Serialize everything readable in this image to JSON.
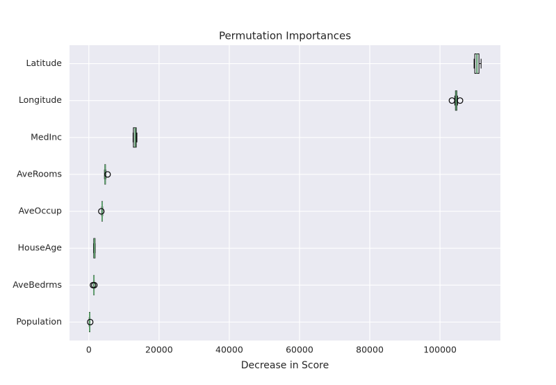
{
  "chart_data": {
    "type": "box",
    "title": "Permutation Importances",
    "x_label": "Decrease in Score",
    "categories": [
      "Latitude",
      "Longitude",
      "MedInc",
      "AveRooms",
      "AveOccup",
      "HouseAge",
      "AveBedrms",
      "Population"
    ],
    "boxes": [
      {
        "whislo": 109700,
        "q1": 109900,
        "med": 110500,
        "q3": 111100,
        "whishi": 111700,
        "fliers": []
      },
      {
        "whislo": 104200,
        "q1": 104400,
        "med": 104600,
        "q3": 104800,
        "whishi": 105000,
        "fliers": [
          103400,
          105700
        ]
      },
      {
        "whislo": 12600,
        "q1": 12700,
        "med": 13200,
        "q3": 13500,
        "whishi": 13700,
        "fliers": []
      },
      {
        "whislo": 4450,
        "q1": 4550,
        "med": 4650,
        "q3": 4750,
        "whishi": 4850,
        "fliers": [
          5350
        ]
      },
      {
        "whislo": 3650,
        "q1": 3700,
        "med": 3800,
        "q3": 3900,
        "whishi": 3950,
        "fliers": [
          3560
        ]
      },
      {
        "whislo": 1350,
        "q1": 1400,
        "med": 1600,
        "q3": 1780,
        "whishi": 1800,
        "fliers": []
      },
      {
        "whislo": 1350,
        "q1": 1400,
        "med": 1450,
        "q3": 1500,
        "whishi": 1550,
        "fliers": [
          1190,
          1580
        ]
      },
      {
        "whislo": 100,
        "q1": 150,
        "med": 250,
        "q3": 300,
        "whishi": 350,
        "fliers": [
          400
        ]
      }
    ],
    "box_color": "#000000",
    "median_color": "#5f9e6e",
    "background": "#eaeaf2",
    "xlim": [
      -5500,
      117200
    ],
    "xticks": [
      0,
      20000,
      40000,
      60000,
      80000,
      100000
    ],
    "grid": true
  }
}
